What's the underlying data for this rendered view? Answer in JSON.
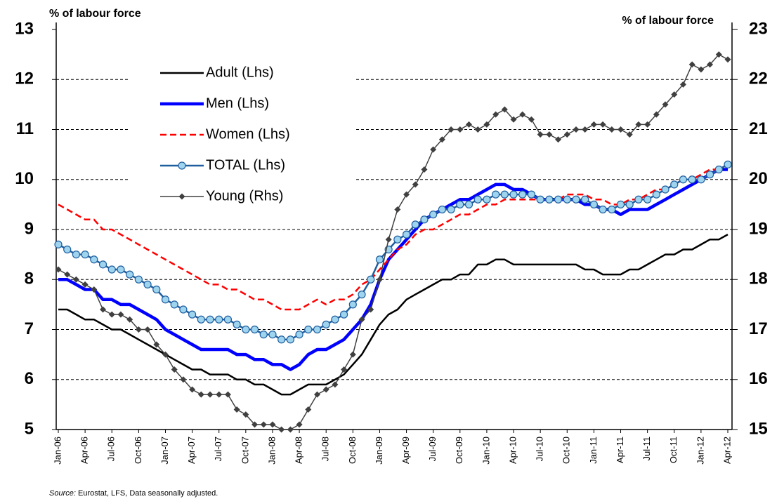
{
  "chart_data": {
    "type": "line",
    "y_label": "% of labour force",
    "y2_label": "% of labour force",
    "source_label": "Source:",
    "source_text": "Eurostat, LFS, Data seasonally adjusted.",
    "categories": [
      "Jan-06",
      null,
      null,
      "Apr-06",
      null,
      null,
      "Jul-06",
      null,
      null,
      "Oct-06",
      null,
      null,
      "Jan-07",
      null,
      null,
      "Apr-07",
      null,
      null,
      "Jul-07",
      null,
      null,
      "Oct-07",
      null,
      null,
      "Jan-08",
      null,
      null,
      "Apr-08",
      null,
      null,
      "Jul-08",
      null,
      null,
      "Oct-08",
      null,
      null,
      "Jan-09",
      null,
      null,
      "Apr-09",
      null,
      null,
      "Jul-09",
      null,
      null,
      "Oct-09",
      null,
      null,
      "Jan-10",
      null,
      null,
      "Apr-10",
      null,
      null,
      "Jul-10",
      null,
      null,
      "Oct-10",
      null,
      null,
      "Jan-11",
      null,
      null,
      "Apr-11",
      null,
      null,
      "Jul-11",
      null,
      null,
      "Oct-11",
      null,
      null,
      "Jan-12",
      null,
      null,
      "Apr-12"
    ],
    "ylim": [
      5,
      13
    ],
    "yticks": [
      5,
      6,
      7,
      8,
      9,
      10,
      11,
      12,
      13
    ],
    "y2lim": [
      15,
      23
    ],
    "y2ticks": [
      15,
      16,
      17,
      18,
      19,
      20,
      21,
      22,
      23
    ],
    "grid": true,
    "series": [
      {
        "name": "Adult (Lhs)",
        "color": "#000000",
        "width": 2.5,
        "values": [
          7.4,
          7.4,
          7.3,
          7.2,
          7.2,
          7.1,
          7.0,
          7.0,
          6.9,
          6.8,
          6.7,
          6.6,
          6.5,
          6.4,
          6.3,
          6.2,
          6.2,
          6.1,
          6.1,
          6.1,
          6.0,
          6.0,
          5.9,
          5.9,
          5.8,
          5.7,
          5.7,
          5.8,
          5.9,
          5.9,
          5.9,
          6.0,
          6.1,
          6.3,
          6.5,
          6.8,
          7.1,
          7.3,
          7.4,
          7.6,
          7.7,
          7.8,
          7.9,
          8.0,
          8.0,
          8.1,
          8.1,
          8.3,
          8.3,
          8.4,
          8.4,
          8.3,
          8.3,
          8.3,
          8.3,
          8.3,
          8.3,
          8.3,
          8.3,
          8.2,
          8.2,
          8.1,
          8.1,
          8.1,
          8.2,
          8.2,
          8.3,
          8.4,
          8.5,
          8.5,
          8.6,
          8.6,
          8.7,
          8.8,
          8.8,
          8.9
        ]
      },
      {
        "name": "Men (Lhs)",
        "color": "#0000ff",
        "width": 4.5,
        "values": [
          8.0,
          8.0,
          7.9,
          7.8,
          7.8,
          7.6,
          7.6,
          7.5,
          7.5,
          7.4,
          7.3,
          7.2,
          7.0,
          6.9,
          6.8,
          6.7,
          6.6,
          6.6,
          6.6,
          6.6,
          6.5,
          6.5,
          6.4,
          6.4,
          6.3,
          6.3,
          6.2,
          6.3,
          6.5,
          6.6,
          6.6,
          6.7,
          6.8,
          7.0,
          7.2,
          7.5,
          8.0,
          8.4,
          8.6,
          8.8,
          9.0,
          9.2,
          9.3,
          9.4,
          9.5,
          9.6,
          9.6,
          9.7,
          9.8,
          9.9,
          9.9,
          9.8,
          9.8,
          9.7,
          9.6,
          9.6,
          9.6,
          9.6,
          9.6,
          9.5,
          9.5,
          9.4,
          9.4,
          9.3,
          9.4,
          9.4,
          9.4,
          9.5,
          9.6,
          9.7,
          9.8,
          9.9,
          10.0,
          10.1,
          10.2,
          10.2
        ]
      },
      {
        "name": "Women (Lhs)",
        "color": "#ff0000",
        "width": 2.5,
        "dash": true,
        "values": [
          9.5,
          9.4,
          9.3,
          9.2,
          9.2,
          9.0,
          9.0,
          8.9,
          8.8,
          8.7,
          8.6,
          8.5,
          8.4,
          8.3,
          8.2,
          8.1,
          8.0,
          7.9,
          7.9,
          7.8,
          7.8,
          7.7,
          7.6,
          7.6,
          7.5,
          7.4,
          7.4,
          7.4,
          7.5,
          7.6,
          7.5,
          7.6,
          7.6,
          7.7,
          7.9,
          8.0,
          8.2,
          8.4,
          8.6,
          8.7,
          8.9,
          9.0,
          9.0,
          9.1,
          9.2,
          9.3,
          9.3,
          9.4,
          9.5,
          9.5,
          9.6,
          9.6,
          9.6,
          9.6,
          9.6,
          9.6,
          9.6,
          9.7,
          9.7,
          9.7,
          9.6,
          9.6,
          9.5,
          9.5,
          9.6,
          9.6,
          9.7,
          9.8,
          9.8,
          9.9,
          10.0,
          10.0,
          10.1,
          10.2,
          10.2,
          10.3
        ]
      },
      {
        "name": "TOTAL  (Lhs)",
        "color": "#1f5f9f",
        "marker_color": "#9fd4ef",
        "width": 2.5,
        "marker": "circle",
        "values": [
          8.7,
          8.6,
          8.5,
          8.5,
          8.4,
          8.3,
          8.2,
          8.2,
          8.1,
          8.0,
          7.9,
          7.8,
          7.6,
          7.5,
          7.4,
          7.3,
          7.2,
          7.2,
          7.2,
          7.2,
          7.1,
          7.0,
          7.0,
          6.9,
          6.9,
          6.8,
          6.8,
          6.9,
          7.0,
          7.0,
          7.1,
          7.2,
          7.3,
          7.5,
          7.7,
          8.0,
          8.4,
          8.6,
          8.8,
          8.9,
          9.1,
          9.2,
          9.3,
          9.4,
          9.4,
          9.5,
          9.5,
          9.6,
          9.6,
          9.7,
          9.7,
          9.7,
          9.7,
          9.7,
          9.6,
          9.6,
          9.6,
          9.6,
          9.6,
          9.6,
          9.5,
          9.4,
          9.4,
          9.5,
          9.5,
          9.6,
          9.6,
          9.7,
          9.8,
          9.9,
          10.0,
          10.0,
          10.0,
          10.1,
          10.2,
          10.3
        ]
      },
      {
        "name": "Young (Rhs)",
        "color": "#404040",
        "width": 1.5,
        "marker": "diamond",
        "axis": "y2",
        "values": [
          18.2,
          18.1,
          18.0,
          17.9,
          17.8,
          17.4,
          17.3,
          17.3,
          17.2,
          17.0,
          17.0,
          16.7,
          16.5,
          16.2,
          16.0,
          15.8,
          15.7,
          15.7,
          15.7,
          15.7,
          15.4,
          15.3,
          15.1,
          15.1,
          15.1,
          15.0,
          15.0,
          15.1,
          15.4,
          15.7,
          15.8,
          15.9,
          16.2,
          16.5,
          17.2,
          17.4,
          18.0,
          18.8,
          19.4,
          19.7,
          19.9,
          20.2,
          20.6,
          20.8,
          21.0,
          21.0,
          21.1,
          21.0,
          21.1,
          21.3,
          21.4,
          21.2,
          21.3,
          21.2,
          20.9,
          20.9,
          20.8,
          20.9,
          21.0,
          21.0,
          21.1,
          21.1,
          21.0,
          21.0,
          20.9,
          21.1,
          21.1,
          21.3,
          21.5,
          21.7,
          21.9,
          22.3,
          22.2,
          22.3,
          22.5,
          22.4
        ]
      }
    ]
  }
}
